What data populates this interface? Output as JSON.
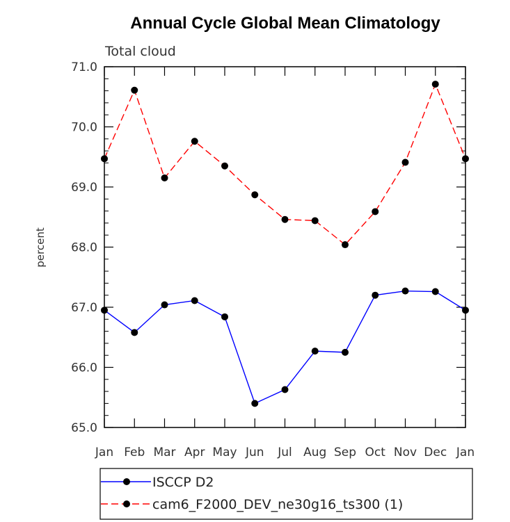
{
  "chart_data": {
    "type": "line",
    "title": "Annual Cycle Global Mean Climatology",
    "subtitle": "Total cloud",
    "xlabel": "",
    "ylabel": "percent",
    "ylim": [
      65.0,
      71.0
    ],
    "yticks": [
      "65.0",
      "66.0",
      "67.0",
      "68.0",
      "69.0",
      "70.0",
      "71.0"
    ],
    "categories": [
      "Jan",
      "Feb",
      "Mar",
      "Apr",
      "May",
      "Jun",
      "Jul",
      "Aug",
      "Sep",
      "Oct",
      "Nov",
      "Dec",
      "Jan"
    ],
    "grid": false,
    "legend_position": "bottom",
    "series": [
      {
        "name": "ISCCP D2",
        "color": "#0000ff",
        "line_style": "solid",
        "values": [
          66.95,
          66.58,
          67.04,
          67.11,
          66.84,
          65.4,
          65.63,
          66.27,
          66.25,
          67.2,
          67.27,
          67.26,
          66.95
        ]
      },
      {
        "name": "cam6_F2000_DEV_ne30g16_ts300 (1)",
        "color": "#ff0000",
        "line_style": "dashed",
        "values": [
          69.47,
          70.61,
          69.15,
          69.76,
          69.35,
          68.87,
          68.46,
          68.44,
          68.04,
          68.59,
          69.41,
          70.71,
          69.47
        ]
      }
    ]
  }
}
